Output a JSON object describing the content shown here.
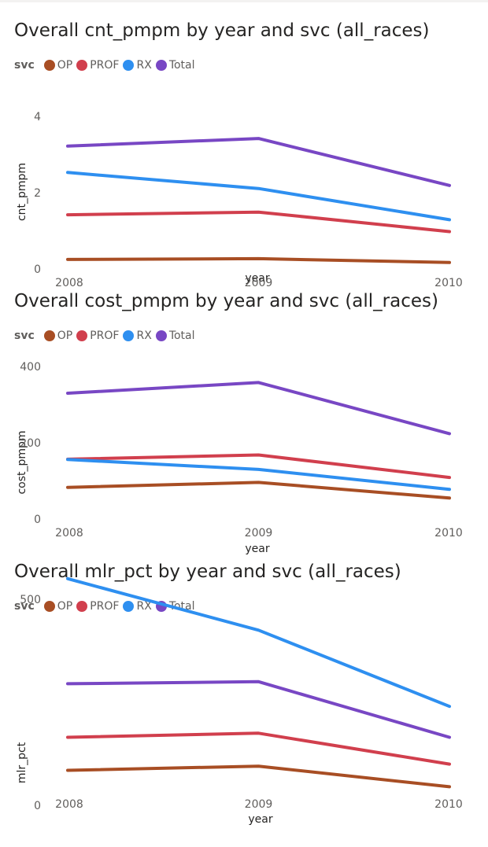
{
  "chart_data": [
    {
      "type": "line",
      "title": "Overall cnt_pmpm by year and svc (all_races)",
      "legend_title": "svc",
      "legend_position": "top-left",
      "xlabel": "year",
      "ylabel": "cnt_pmpm",
      "x": [
        "2008",
        "2009",
        "2010"
      ],
      "ylim": [
        0,
        4
      ],
      "yticks": [
        0,
        2,
        4
      ],
      "grid": false,
      "series": [
        {
          "name": "OP",
          "color": "#a84e24",
          "values": [
            0.25,
            0.27,
            0.17
          ]
        },
        {
          "name": "PROF",
          "color": "#d13f4d",
          "values": [
            1.42,
            1.49,
            0.98
          ]
        },
        {
          "name": "RX",
          "color": "#2e8ff0",
          "values": [
            2.53,
            2.11,
            1.29
          ]
        },
        {
          "name": "Total",
          "color": "#7847c4",
          "values": [
            3.22,
            3.42,
            2.19
          ]
        }
      ]
    },
    {
      "type": "line",
      "title": "Overall cost_pmpm by year and svc (all_races)",
      "legend_title": "svc",
      "legend_position": "top-left",
      "xlabel": "year",
      "ylabel": "cost_pmpm",
      "x": [
        "2008",
        "2009",
        "2010"
      ],
      "ylim": [
        0,
        400
      ],
      "yticks": [
        0,
        200,
        400
      ],
      "grid": false,
      "series": [
        {
          "name": "OP",
          "color": "#a84e24",
          "values": [
            83,
            96,
            55
          ]
        },
        {
          "name": "PROF",
          "color": "#d13f4d",
          "values": [
            157,
            168,
            109
          ]
        },
        {
          "name": "RX",
          "color": "#2e8ff0",
          "values": [
            156,
            130,
            78
          ]
        },
        {
          "name": "Total",
          "color": "#7847c4",
          "values": [
            330,
            358,
            224
          ]
        }
      ]
    },
    {
      "type": "line",
      "title": "Overall mlr_pct by year and svc (all_races)",
      "legend_title": "svc",
      "legend_position": "top-left",
      "xlabel": "year",
      "ylabel": "mlr_pct",
      "x": [
        "2008",
        "2009",
        "2010"
      ],
      "ylim": [
        0,
        500
      ],
      "yticks": [
        0,
        500
      ],
      "grid": false,
      "series": [
        {
          "name": "OP",
          "color": "#a84e24",
          "values": [
            85,
            95,
            45
          ]
        },
        {
          "name": "PROF",
          "color": "#d13f4d",
          "values": [
            165,
            175,
            100
          ]
        },
        {
          "name": "RX",
          "color": "#2e8ff0",
          "values": [
            550,
            425,
            240
          ]
        },
        {
          "name": "Total",
          "color": "#7847c4",
          "values": [
            295,
            300,
            165
          ]
        }
      ]
    }
  ]
}
